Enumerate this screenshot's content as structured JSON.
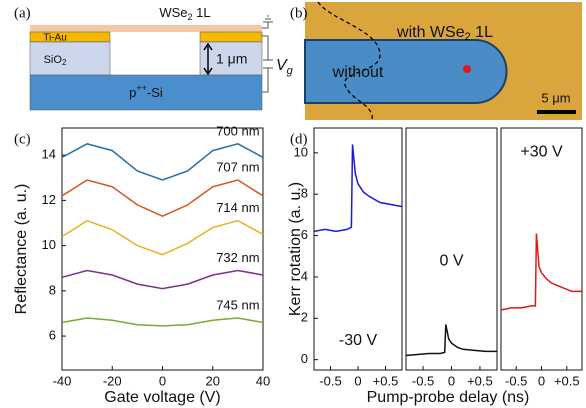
{
  "panel_a": {
    "label": "(a)",
    "flake": [
      "WSe",
      "2",
      " 1L"
    ],
    "metal": "Ti-Au",
    "oxide": [
      "SiO",
      "2"
    ],
    "thickness": "1 μm",
    "gate": [
      "V",
      "g"
    ],
    "substrate": [
      "p",
      "++",
      "-Si"
    ]
  },
  "panel_b": {
    "label": "(b)",
    "with": [
      "with WSe",
      "2",
      " 1L"
    ],
    "without": "without",
    "scale_bar": "5 μm"
  },
  "chart_data": [
    {
      "type": "line",
      "panel_label": "(c)",
      "x_label": "Gate voltage (V)",
      "y_label": "Reflectance (a. u.)",
      "x": [
        -40,
        -30,
        -20,
        -10,
        0,
        10,
        20,
        30,
        40
      ],
      "xlim": [
        -40,
        40
      ],
      "xticks": [
        -40,
        -20,
        0,
        20,
        40
      ],
      "ylim": [
        4.5,
        15.2
      ],
      "yticks": [
        6,
        8,
        10,
        12,
        14
      ],
      "series": [
        {
          "name": "700 nm",
          "color": "#1f6fb0",
          "values": [
            13.9,
            14.5,
            14.2,
            13.3,
            12.9,
            13.3,
            14.2,
            14.5,
            13.9
          ]
        },
        {
          "name": "707 nm",
          "color": "#d95319",
          "values": [
            12.2,
            12.9,
            12.6,
            11.8,
            11.3,
            11.8,
            12.6,
            12.9,
            12.2
          ]
        },
        {
          "name": "714 nm",
          "color": "#edb120",
          "values": [
            10.4,
            11.1,
            10.7,
            10.0,
            9.6,
            10.1,
            10.8,
            11.1,
            10.5
          ]
        },
        {
          "name": "732 nm",
          "color": "#7e2f8e",
          "values": [
            8.6,
            8.9,
            8.7,
            8.3,
            8.1,
            8.3,
            8.7,
            8.9,
            8.7
          ]
        },
        {
          "name": "745 nm",
          "color": "#77ac30",
          "values": [
            6.6,
            6.8,
            6.7,
            6.5,
            6.45,
            6.5,
            6.7,
            6.8,
            6.6
          ]
        }
      ]
    },
    {
      "type": "line",
      "panel_label": "(d)",
      "x_label": "Pump-probe delay (ns)",
      "y_label": "Kerr rotation (a. u.)",
      "annotation": "-30 V",
      "x": [
        -0.8,
        -0.6,
        -0.4,
        -0.2,
        -0.12,
        -0.1,
        -0.05,
        0,
        0.1,
        0.2,
        0.4,
        0.6,
        0.8
      ],
      "xlim": [
        -0.8,
        0.8
      ],
      "xticks": [
        -0.5,
        0,
        {
          "value": 0.5,
          "label": "+0.5"
        }
      ],
      "ylim": [
        -0.5,
        11.2
      ],
      "yticks": [
        0,
        2,
        4,
        6,
        8,
        10
      ],
      "series": [
        {
          "color": "#1a1adb",
          "values": [
            6.2,
            6.3,
            6.2,
            6.3,
            6.4,
            10.4,
            9.0,
            8.5,
            8.1,
            7.9,
            7.6,
            7.5,
            7.4
          ]
        }
      ]
    },
    {
      "type": "line",
      "annotation": "0 V",
      "x": [
        -0.8,
        -0.6,
        -0.4,
        -0.2,
        -0.12,
        -0.1,
        -0.05,
        0,
        0.1,
        0.2,
        0.4,
        0.6,
        0.8
      ],
      "xlim": [
        -0.8,
        0.8
      ],
      "xticks": [
        -0.5,
        0,
        {
          "value": 0.5,
          "label": "+0.5"
        }
      ],
      "ylim": [
        -0.5,
        11.2
      ],
      "series": [
        {
          "color": "#111111",
          "values": [
            0.2,
            0.25,
            0.3,
            0.3,
            0.35,
            1.7,
            1.0,
            0.8,
            0.6,
            0.5,
            0.45,
            0.4,
            0.4
          ]
        }
      ]
    },
    {
      "type": "line",
      "annotation": "+30 V",
      "x": [
        -0.8,
        -0.6,
        -0.4,
        -0.2,
        -0.12,
        -0.1,
        -0.05,
        0,
        0.1,
        0.2,
        0.4,
        0.6,
        0.8
      ],
      "xlim": [
        -0.8,
        0.8
      ],
      "xticks": [
        -0.5,
        0,
        {
          "value": 0.5,
          "label": "+0.5"
        }
      ],
      "ylim": [
        -0.5,
        11.2
      ],
      "series": [
        {
          "color": "#e01818",
          "values": [
            2.4,
            2.5,
            2.5,
            2.6,
            2.6,
            6.1,
            4.5,
            4.2,
            3.9,
            3.7,
            3.5,
            3.3,
            3.3
          ]
        }
      ]
    }
  ]
}
